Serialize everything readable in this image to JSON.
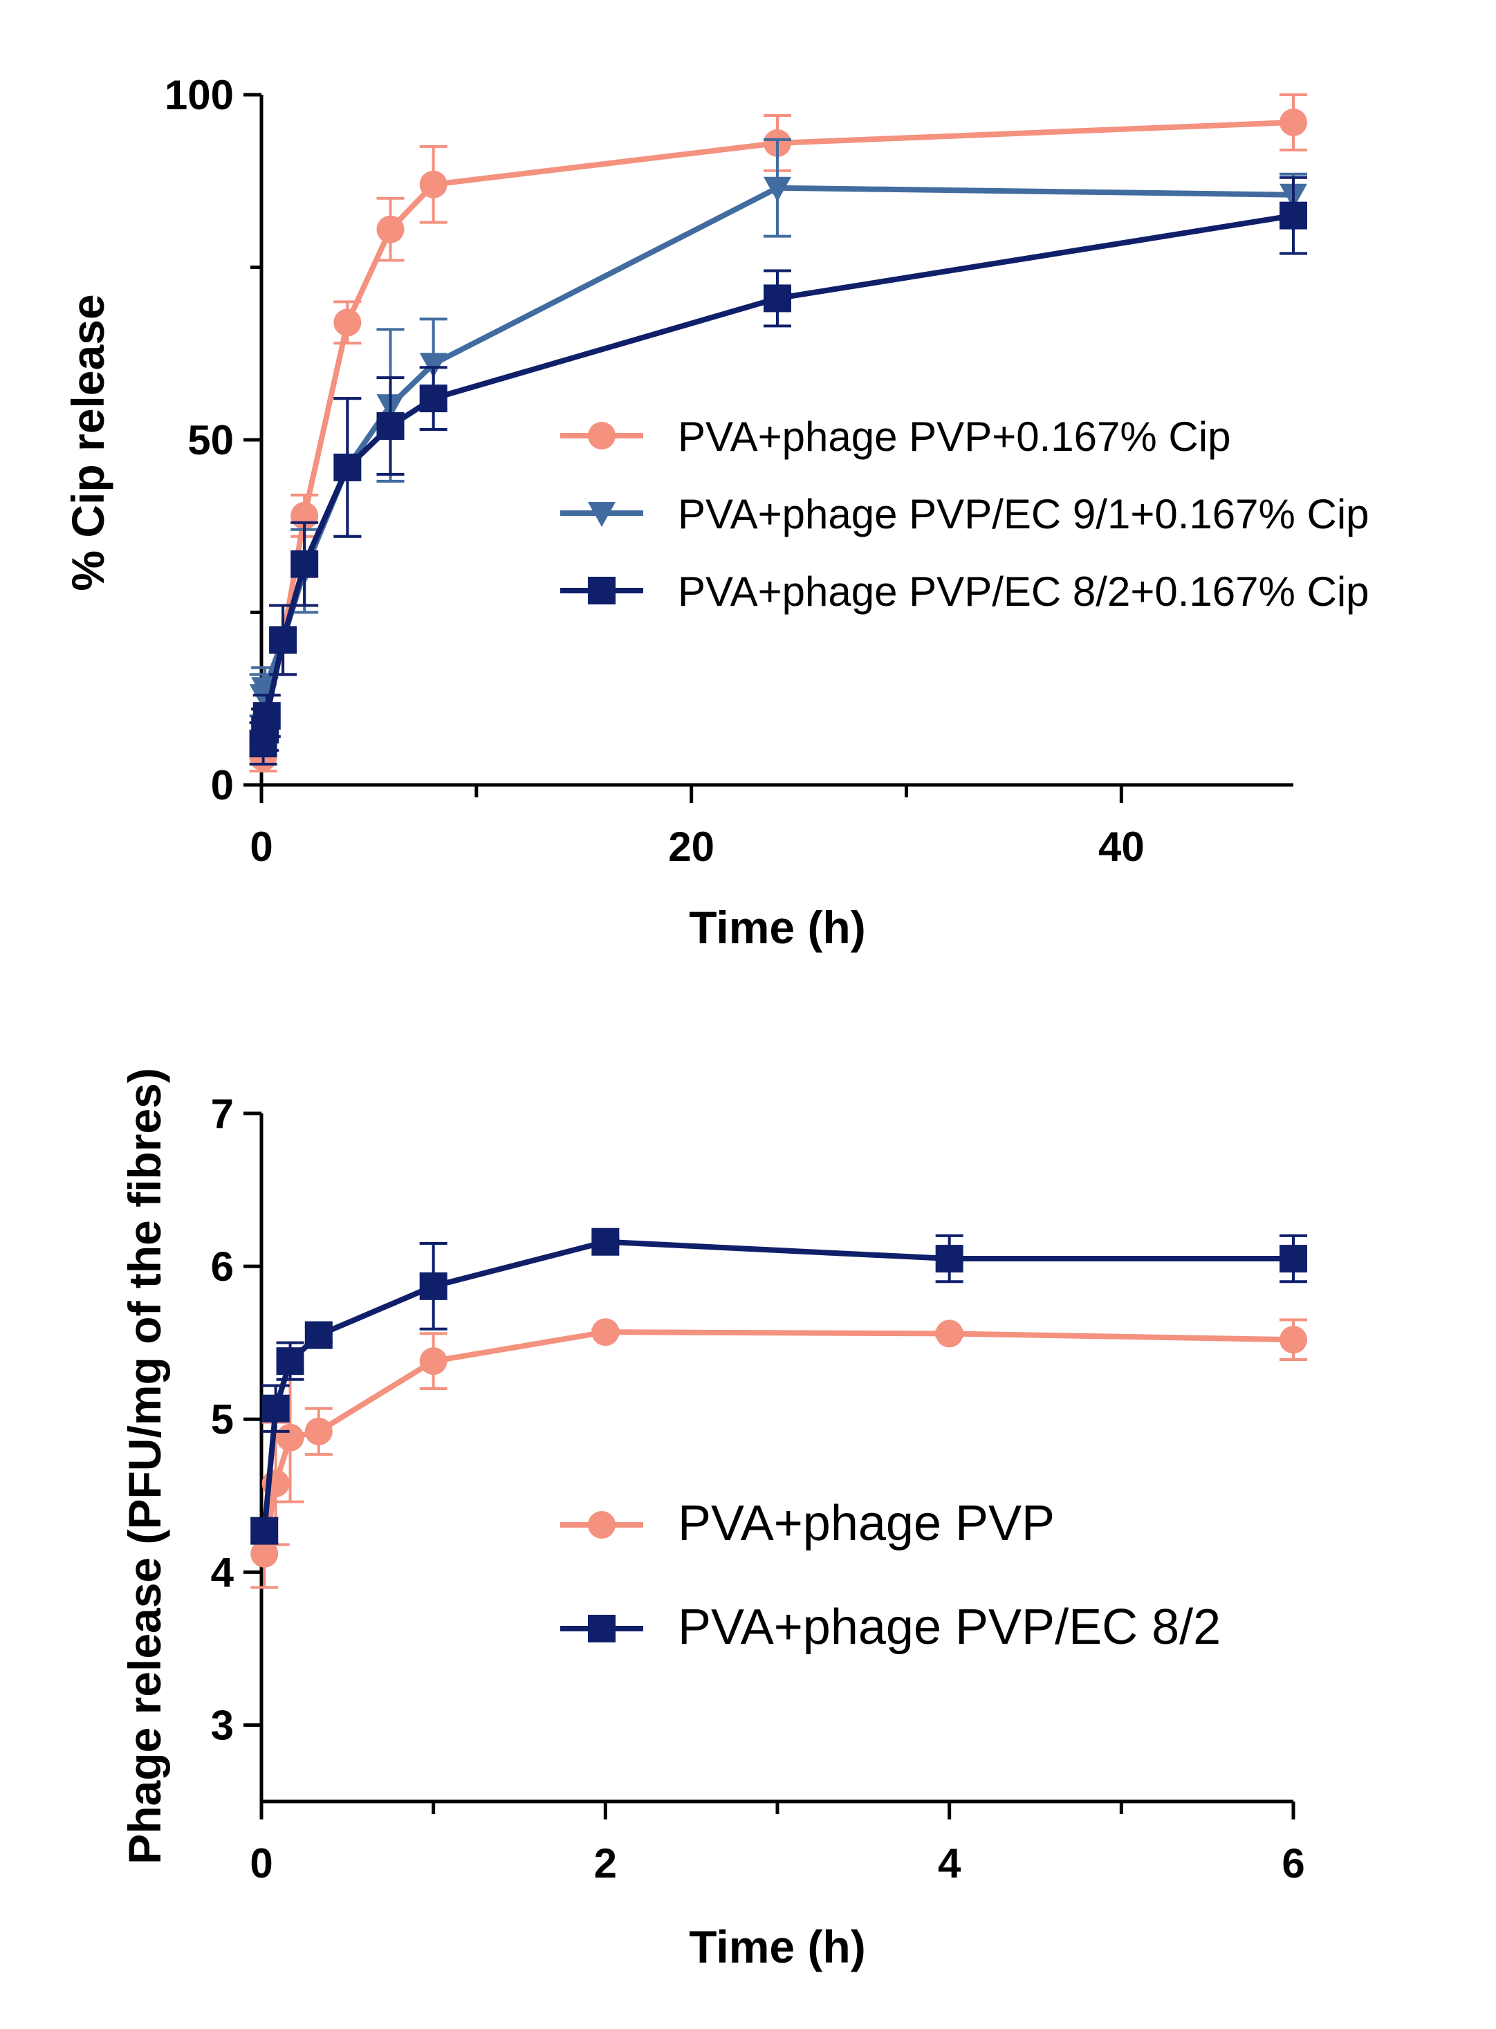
{
  "chart_data": [
    {
      "type": "line",
      "title": "",
      "xlabel": "Time (h)",
      "ylabel": "% Cip release",
      "xlim": [
        0,
        48
      ],
      "ylim": [
        0,
        100
      ],
      "x_ticks": [
        0,
        20,
        40
      ],
      "x_minor_ticks": [
        10,
        30
      ],
      "y_ticks": [
        0,
        50,
        100
      ],
      "y_minor_ticks": [
        25,
        75
      ],
      "legend_position": "right-middle",
      "error_bars": true,
      "series": [
        {
          "name": "PVA+phage PVP+0.167% Cip",
          "color": "#f4917f",
          "marker": "circle",
          "points": [
            {
              "x": 0.083,
              "y": 4,
              "err": 2
            },
            {
              "x": 0.167,
              "y": 7,
              "err": 2
            },
            {
              "x": 0.25,
              "y": 10,
              "err": 3
            },
            {
              "x": 1,
              "y": 21,
              "err": 5
            },
            {
              "x": 2,
              "y": 39,
              "err": 3
            },
            {
              "x": 4,
              "y": 67,
              "err": 3
            },
            {
              "x": 6,
              "y": 80.5,
              "err": 4.5
            },
            {
              "x": 8,
              "y": 87,
              "err": 5.5
            },
            {
              "x": 24,
              "y": 93,
              "err": 4
            },
            {
              "x": 48,
              "y": 96,
              "err": 4
            }
          ]
        },
        {
          "name": "PVA+phage PVP/EC 9/1+0.167% Cip",
          "color": "#426c9f",
          "marker": "triangle-down",
          "points": [
            {
              "x": 0.083,
              "y": 13,
              "err": 3
            },
            {
              "x": 0.167,
              "y": 14,
              "err": 3
            },
            {
              "x": 1,
              "y": 21,
              "err": 5
            },
            {
              "x": 2,
              "y": 31,
              "err": 6
            },
            {
              "x": 4,
              "y": 46,
              "err": 10
            },
            {
              "x": 6,
              "y": 55,
              "err": 11
            },
            {
              "x": 8,
              "y": 61,
              "err": 6.5
            },
            {
              "x": 24,
              "y": 86.5,
              "err": 7
            },
            {
              "x": 48,
              "y": 85.5,
              "err": 3
            }
          ]
        },
        {
          "name": "PVA+phage PVP/EC 8/2+0.167% Cip",
          "color": "#0f1f6a",
          "marker": "square",
          "points": [
            {
              "x": 0.083,
              "y": 6,
              "err": 3
            },
            {
              "x": 0.167,
              "y": 8,
              "err": 3
            },
            {
              "x": 0.25,
              "y": 10,
              "err": 3
            },
            {
              "x": 1,
              "y": 21,
              "err": 5
            },
            {
              "x": 2,
              "y": 32,
              "err": 6
            },
            {
              "x": 4,
              "y": 46,
              "err": 10
            },
            {
              "x": 6,
              "y": 52,
              "err": 7
            },
            {
              "x": 8,
              "y": 56,
              "err": 4.5
            },
            {
              "x": 24,
              "y": 70.5,
              "err": 4
            },
            {
              "x": 48,
              "y": 82.5,
              "err": 5.5
            }
          ]
        }
      ]
    },
    {
      "type": "line",
      "title": "",
      "xlabel": "Time (h)",
      "ylabel": "Phage release (PFU/mg of the fibres)",
      "xlim": [
        0,
        6
      ],
      "ylim": [
        2.5,
        7
      ],
      "x_ticks": [
        0,
        2,
        4,
        6
      ],
      "x_minor_ticks": [
        1,
        3,
        5
      ],
      "y_ticks": [
        3,
        4,
        5,
        6,
        7
      ],
      "legend_position": "right-lower",
      "error_bars": true,
      "series": [
        {
          "name": "PVA+phage PVP",
          "color": "#f4917f",
          "marker": "circle",
          "points": [
            {
              "x": 0.017,
              "y": 4.12,
              "err": 0.22
            },
            {
              "x": 0.083,
              "y": 4.58,
              "err": 0.4
            },
            {
              "x": 0.167,
              "y": 4.88,
              "err": 0.42
            },
            {
              "x": 0.333,
              "y": 4.92,
              "err": 0.15
            },
            {
              "x": 1,
              "y": 5.38,
              "err": 0.18
            },
            {
              "x": 2,
              "y": 5.57,
              "err": 0.02
            },
            {
              "x": 4,
              "y": 5.56,
              "err": 0.02
            },
            {
              "x": 6,
              "y": 5.52,
              "err": 0.13
            }
          ]
        },
        {
          "name": "PVA+phage PVP/EC 8/2",
          "color": "#0f1f6a",
          "marker": "square",
          "points": [
            {
              "x": 0.017,
              "y": 4.27,
              "err": 0.08
            },
            {
              "x": 0.083,
              "y": 5.07,
              "err": 0.15
            },
            {
              "x": 0.167,
              "y": 5.38,
              "err": 0.12
            },
            {
              "x": 0.333,
              "y": 5.55,
              "err": 0.05
            },
            {
              "x": 1,
              "y": 5.87,
              "err": 0.28
            },
            {
              "x": 2,
              "y": 6.16,
              "err": 0.03
            },
            {
              "x": 4,
              "y": 6.05,
              "err": 0.15
            },
            {
              "x": 6,
              "y": 6.05,
              "err": 0.15
            }
          ]
        }
      ]
    }
  ]
}
